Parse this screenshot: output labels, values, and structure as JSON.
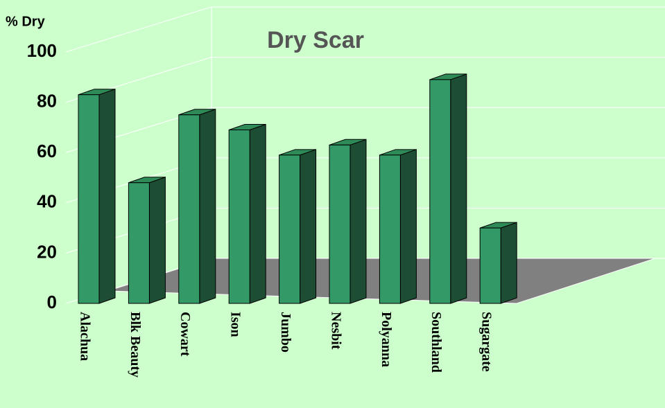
{
  "chart_data": {
    "type": "bar",
    "title": "Dry Scar",
    "y_label": "% Dry",
    "categories": [
      "Alachua",
      "Blk Beauty",
      "Cowart",
      "Ison",
      "Jumbo",
      "Nesbit",
      "Polyanna",
      "Southland",
      "Sugargate"
    ],
    "values": [
      83,
      48,
      75,
      69,
      59,
      63,
      59,
      89,
      30
    ],
    "color": "#339966",
    "ylim": [
      0,
      100
    ],
    "yticks": [
      0,
      20,
      40,
      60,
      80,
      100
    ],
    "grid": true
  }
}
